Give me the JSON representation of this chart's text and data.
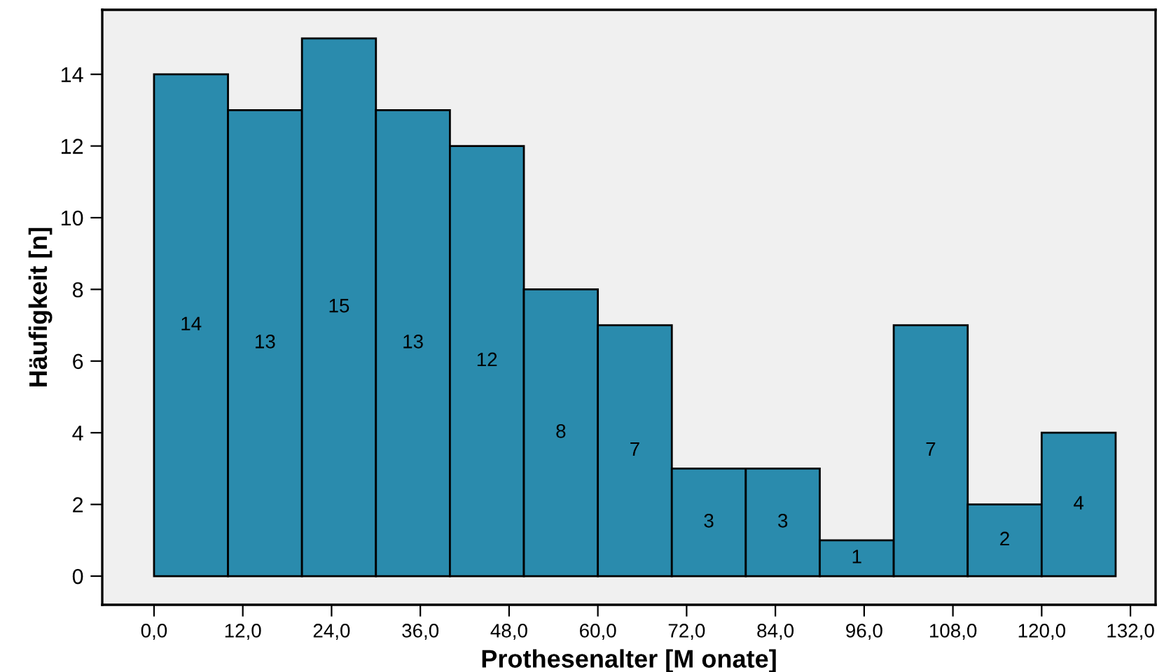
{
  "chart_data": {
    "type": "histogram",
    "xlabel": "Prothesenalter [M onate]",
    "ylabel": "Häufigkeit [n]",
    "bins": [
      0,
      10,
      20,
      30,
      40,
      50,
      60,
      70,
      80,
      90,
      100,
      110,
      120,
      130
    ],
    "values": [
      14,
      13,
      15,
      13,
      12,
      8,
      7,
      3,
      3,
      1,
      7,
      2,
      4
    ],
    "color": "#2a8bad",
    "data_labels": true,
    "grid": false,
    "xlim": [
      -7,
      135.4
    ],
    "ylim": [
      -0.8,
      15.8
    ],
    "xticks": [
      {
        "value": 0,
        "label": "0,0"
      },
      {
        "value": 12,
        "label": "12,0"
      },
      {
        "value": 24,
        "label": "24,0"
      },
      {
        "value": 36,
        "label": "36,0"
      },
      {
        "value": 48,
        "label": "48,0"
      },
      {
        "value": 60,
        "label": "60,0"
      },
      {
        "value": 72,
        "label": "72,0"
      },
      {
        "value": 84,
        "label": "84,0"
      },
      {
        "value": 96,
        "label": "96,0"
      },
      {
        "value": 108,
        "label": "108,0"
      },
      {
        "value": 120,
        "label": "120,0"
      },
      {
        "value": 132,
        "label": "132,0"
      }
    ],
    "yticks": [
      0,
      2,
      4,
      6,
      8,
      10,
      12,
      14
    ]
  }
}
